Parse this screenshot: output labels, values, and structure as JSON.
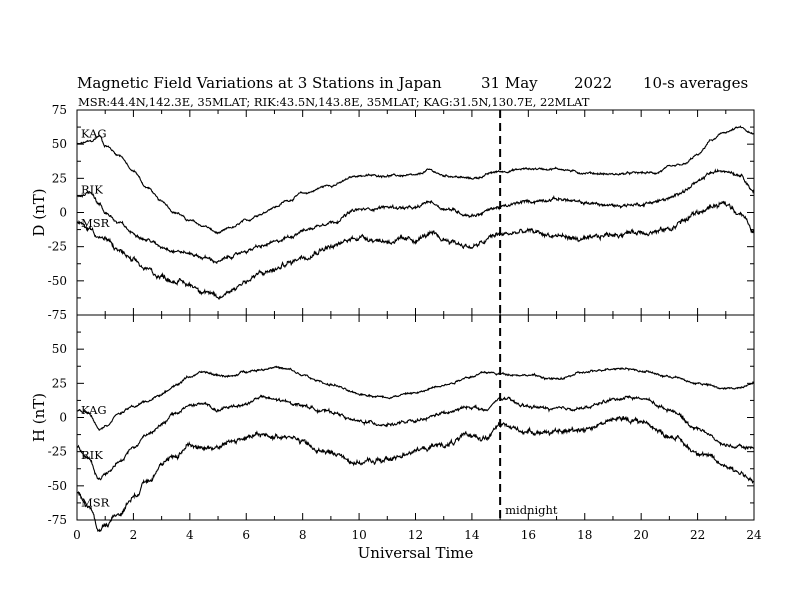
{
  "title": {
    "main": "Magnetic Field Variations at 3 Stations in Japan",
    "date": "31 May",
    "year": "2022",
    "averaging": "10-s averages",
    "stations": "MSR:44.4N,142.3E, 35MLAT;  RIK:43.5N,143.8E, 35MLAT;  KAG:31.5N,130.7E, 22MLAT"
  },
  "chart_data": [
    {
      "type": "line",
      "panel": "top",
      "ylabel": "D (nT)",
      "ylim": [
        -75,
        75
      ],
      "yticks": [
        "75",
        "50",
        "25",
        "0",
        "-25",
        "-50",
        "-75"
      ],
      "xlim": [
        0,
        24
      ],
      "xticks": [
        "0",
        "2",
        "4",
        "6",
        "8",
        "10",
        "12",
        "14",
        "16",
        "18",
        "20",
        "22",
        "24"
      ],
      "annotation": {
        "x": 15,
        "style": "dashed"
      },
      "series": [
        {
          "name": "KAG",
          "x": [
            0,
            0.5,
            0.8,
            1,
            1.5,
            2,
            2.5,
            3,
            3.5,
            4,
            4.5,
            5,
            5.5,
            6,
            6.5,
            7,
            7.5,
            8,
            9,
            10,
            11,
            12,
            12.5,
            13,
            14,
            15,
            16,
            17,
            18,
            19,
            20,
            20.5,
            21,
            21.5,
            22,
            22.5,
            23,
            23.5,
            24
          ],
          "values": [
            50,
            52,
            56,
            49,
            42,
            30,
            18,
            8,
            0,
            -6,
            -10,
            -15,
            -11,
            -6,
            -1,
            4,
            9,
            14,
            20,
            27,
            27,
            27,
            31,
            27,
            25,
            30,
            32,
            32,
            29,
            28,
            29,
            29,
            33,
            35,
            42,
            53,
            59,
            62,
            57
          ]
        },
        {
          "name": "RIK",
          "x": [
            0,
            0.5,
            0.8,
            1,
            1.5,
            2,
            2.5,
            3,
            3.5,
            4,
            4.5,
            5,
            5.5,
            6,
            6.5,
            7,
            7.5,
            8,
            9,
            10,
            11,
            12,
            12.5,
            13,
            14,
            15,
            16,
            17,
            18,
            19,
            20,
            20.5,
            21,
            21.5,
            22,
            22.5,
            23,
            23.5,
            24
          ],
          "values": [
            12,
            15,
            6,
            0,
            -8,
            -15,
            -20,
            -25,
            -28,
            -30,
            -33,
            -36,
            -32,
            -28,
            -25,
            -22,
            -18,
            -13,
            -7,
            2,
            4,
            3,
            8,
            3,
            -2,
            4,
            8,
            10,
            7,
            5,
            6,
            8,
            10,
            16,
            22,
            29,
            31,
            28,
            16
          ]
        },
        {
          "name": "MSR",
          "x": [
            0,
            0.5,
            0.8,
            1,
            1.5,
            2,
            2.5,
            3,
            3.5,
            4,
            4.5,
            5,
            5.5,
            6,
            6.5,
            7,
            7.5,
            8,
            9,
            10,
            11,
            12,
            12.5,
            13,
            14,
            15,
            16,
            17,
            18,
            19,
            20,
            20.5,
            21,
            21.5,
            22,
            22.5,
            23,
            23.5,
            24
          ],
          "values": [
            -8,
            -12,
            -18,
            -20,
            -28,
            -36,
            -42,
            -47,
            -50,
            -53,
            -57,
            -63,
            -56,
            -50,
            -45,
            -42,
            -37,
            -32,
            -25,
            -18,
            -21,
            -20,
            -16,
            -20,
            -25,
            -16,
            -14,
            -17,
            -20,
            -16,
            -14,
            -14,
            -12,
            -6,
            0,
            4,
            6,
            0,
            -14
          ]
        }
      ]
    },
    {
      "type": "line",
      "panel": "bottom",
      "ylabel": "H (nT)",
      "xlabel": "Universal Time",
      "ylim": [
        -75,
        75
      ],
      "yticks": [
        "",
        "50",
        "25",
        "0",
        "-25",
        "-50",
        "-75"
      ],
      "xlim": [
        0,
        24
      ],
      "xticks": [
        "0",
        "2",
        "4",
        "6",
        "8",
        "10",
        "12",
        "14",
        "16",
        "18",
        "20",
        "22",
        "24"
      ],
      "annotation": {
        "x": 15,
        "style": "dashed",
        "label": "midnight"
      },
      "series": [
        {
          "name": "KAG",
          "x": [
            0,
            0.4,
            0.8,
            1,
            1.5,
            2,
            2.5,
            3,
            3.5,
            4,
            4.5,
            5,
            5.5,
            6,
            6.5,
            7,
            7.5,
            8,
            8.5,
            9,
            10,
            11,
            12,
            13,
            14,
            14.5,
            15,
            16,
            17,
            18,
            19,
            19.5,
            20,
            21,
            22,
            23,
            23.5,
            24
          ],
          "values": [
            5,
            4,
            -8,
            -6,
            3,
            8,
            12,
            17,
            24,
            30,
            33,
            31,
            30,
            34,
            35,
            37,
            35,
            31,
            27,
            24,
            17,
            15,
            18,
            24,
            30,
            33,
            32,
            31,
            28,
            33,
            36,
            36,
            34,
            30,
            25,
            21,
            22,
            26
          ]
        },
        {
          "name": "RIK",
          "x": [
            0,
            0.4,
            0.8,
            1,
            1.5,
            2,
            2.5,
            3,
            3.5,
            4,
            4.5,
            5,
            5.5,
            6,
            6.5,
            7,
            7.5,
            8,
            8.5,
            9,
            10,
            11,
            12,
            13,
            14,
            14.5,
            15,
            16,
            17,
            18,
            19,
            19.5,
            20,
            21,
            22,
            23,
            23.5,
            24
          ],
          "values": [
            -22,
            -30,
            -45,
            -41,
            -32,
            -22,
            -12,
            -5,
            3,
            9,
            10,
            5,
            8,
            10,
            15,
            13,
            11,
            9,
            6,
            4,
            -3,
            -5,
            -3,
            3,
            8,
            5,
            14,
            8,
            6,
            7,
            13,
            15,
            14,
            6,
            -8,
            -20,
            -22,
            -22
          ]
        },
        {
          "name": "MSR",
          "x": [
            0,
            0.4,
            0.8,
            1,
            1.5,
            2,
            2.5,
            3,
            3.5,
            4,
            4.5,
            5,
            5.5,
            6,
            6.5,
            7,
            7.5,
            8,
            8.5,
            9,
            10,
            11,
            12,
            13,
            14,
            14.5,
            15,
            16,
            17,
            18,
            19,
            19.5,
            20,
            21,
            22,
            23,
            23.5,
            24
          ],
          "values": [
            -55,
            -65,
            -82,
            -78,
            -70,
            -58,
            -45,
            -35,
            -28,
            -20,
            -22,
            -22,
            -17,
            -15,
            -13,
            -14,
            -13,
            -18,
            -24,
            -26,
            -33,
            -31,
            -24,
            -20,
            -13,
            -15,
            -6,
            -10,
            -11,
            -8,
            -2,
            -1,
            -3,
            -13,
            -25,
            -35,
            -40,
            -47
          ]
        }
      ]
    }
  ]
}
